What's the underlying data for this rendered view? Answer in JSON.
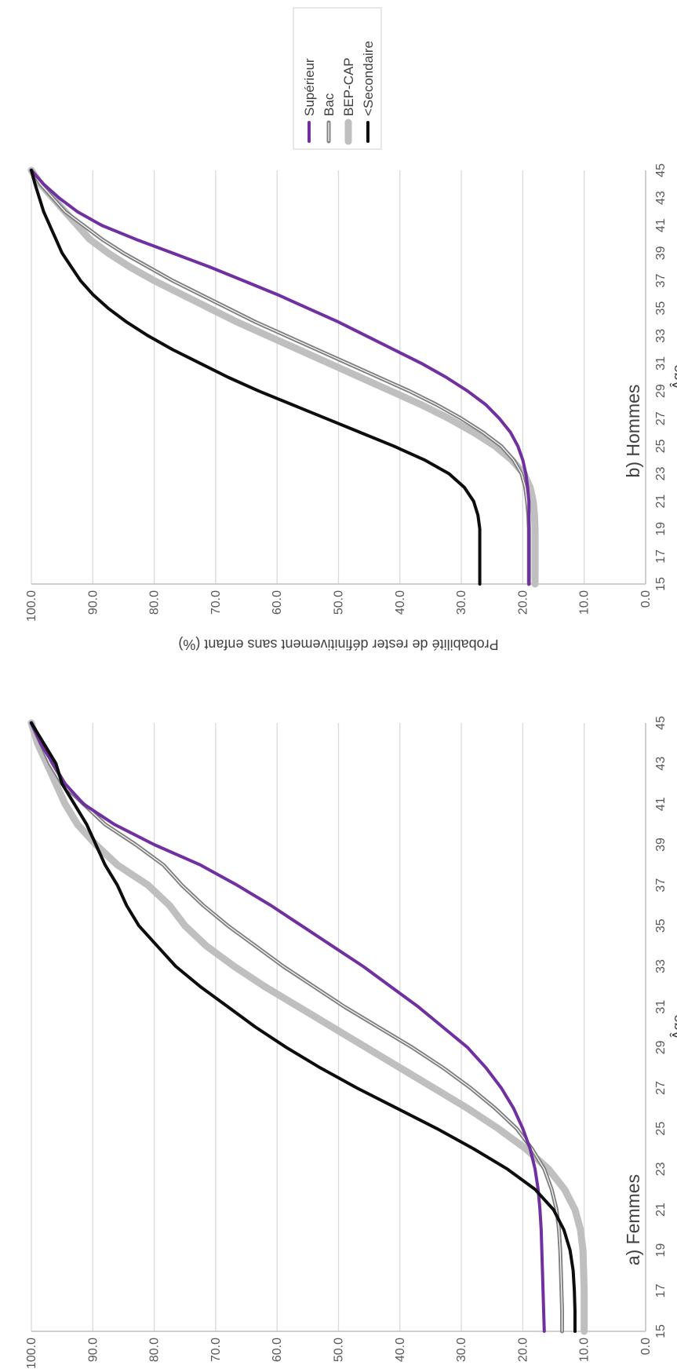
{
  "chart_data": [
    {
      "type": "line",
      "title": "a) Femmes",
      "xlabel": "Âge",
      "ylabel": "Probabilité de rester définitivement sans enfant (%)",
      "xlim": [
        15,
        45
      ],
      "ylim": [
        0,
        100
      ],
      "x_ticks": [
        "15",
        "17",
        "19",
        "21",
        "23",
        "25",
        "27",
        "29",
        "31",
        "33",
        "35",
        "37",
        "39",
        "41",
        "43",
        "45"
      ],
      "y_ticks": [
        "0.0",
        "10.0",
        "20.0",
        "30.0",
        "40.0",
        "50.0",
        "60.0",
        "70.0",
        "80.0",
        "90.0",
        "100.0"
      ],
      "grid": "horizontal",
      "x": [
        15,
        16,
        17,
        18,
        19,
        20,
        21,
        22,
        23,
        24,
        25,
        26,
        27,
        28,
        29,
        30,
        31,
        32,
        33,
        34,
        35,
        36,
        37,
        38,
        39,
        40,
        41,
        42,
        43,
        44,
        45
      ],
      "series": [
        {
          "name": "Supérieur",
          "color": "#7030a0",
          "width": 4,
          "values": [
            16.5,
            16.6,
            16.7,
            16.8,
            16.9,
            17.0,
            17.2,
            17.5,
            18.0,
            18.8,
            20.0,
            21.5,
            23.5,
            26.0,
            29.0,
            33.0,
            37.0,
            41.5,
            46.0,
            51.0,
            56.0,
            61.0,
            66.5,
            72.5,
            80.0,
            86.5,
            91.5,
            94.5,
            96.5,
            98.5,
            100.0
          ]
        },
        {
          "name": "Bac",
          "color": "#808080",
          "width": 5,
          "style": "double",
          "values": [
            13.6,
            13.6,
            13.7,
            13.8,
            13.9,
            14.1,
            14.5,
            15.3,
            16.5,
            18.5,
            21.0,
            24.5,
            28.5,
            33.0,
            38.0,
            43.5,
            49.0,
            54.0,
            59.0,
            63.5,
            68.0,
            72.0,
            75.5,
            78.5,
            83.0,
            88.0,
            91.5,
            95.0,
            97.0,
            98.5,
            100.0
          ]
        },
        {
          "name": "BEP-CAP",
          "color": "#bfbfbf",
          "width": 9,
          "values": [
            10.0,
            10.0,
            10.0,
            10.1,
            10.2,
            10.6,
            11.5,
            13.2,
            15.8,
            19.5,
            24.0,
            29.0,
            34.5,
            40.0,
            45.5,
            51.0,
            56.5,
            62.0,
            67.0,
            71.5,
            75.0,
            77.5,
            81.0,
            86.0,
            89.5,
            92.5,
            94.5,
            96.0,
            97.5,
            99.0,
            100.0
          ]
        },
        {
          "name": "<Secondaire",
          "color": "#0d0d0d",
          "width": 4,
          "values": [
            11.5,
            11.5,
            11.6,
            11.8,
            12.3,
            13.3,
            15.0,
            18.0,
            22.5,
            28.0,
            34.0,
            40.5,
            47.0,
            53.0,
            58.5,
            63.5,
            68.0,
            72.5,
            76.5,
            79.5,
            82.5,
            84.5,
            86.0,
            88.0,
            89.5,
            91.0,
            93.0,
            95.0,
            96.0,
            98.0,
            100.0
          ]
        }
      ]
    },
    {
      "type": "line",
      "title": "b) Hommes",
      "xlabel": "Âge",
      "ylabel": "Probabilité de rester définitivement sans enfant (%)",
      "xlim": [
        15,
        45
      ],
      "ylim": [
        0,
        100
      ],
      "x_ticks": [
        "15",
        "17",
        "19",
        "21",
        "23",
        "25",
        "27",
        "29",
        "31",
        "33",
        "35",
        "37",
        "39",
        "41",
        "43",
        "45"
      ],
      "y_ticks": [
        "0.0",
        "10.0",
        "20.0",
        "30.0",
        "40.0",
        "50.0",
        "60.0",
        "70.0",
        "80.0",
        "90.0",
        "100.0"
      ],
      "grid": "horizontal",
      "x": [
        15,
        16,
        17,
        18,
        19,
        20,
        21,
        22,
        23,
        24,
        25,
        26,
        27,
        28,
        29,
        30,
        31,
        32,
        33,
        34,
        35,
        36,
        37,
        38,
        39,
        40,
        41,
        42,
        43,
        44,
        45
      ],
      "series": [
        {
          "name": "Supérieur",
          "color": "#7030a0",
          "width": 4,
          "values": [
            19.0,
            19.0,
            19.0,
            19.0,
            19.0,
            19.0,
            19.0,
            19.2,
            19.5,
            20.0,
            20.8,
            22.0,
            23.8,
            26.0,
            29.0,
            32.5,
            36.5,
            41.0,
            45.5,
            50.0,
            55.0,
            60.0,
            65.5,
            71.0,
            77.0,
            83.0,
            88.5,
            92.5,
            95.5,
            98.0,
            100.0
          ]
        },
        {
          "name": "Bac",
          "color": "#808080",
          "width": 5,
          "style": "double",
          "values": [
            19.0,
            19.0,
            19.0,
            19.0,
            19.0,
            19.1,
            19.3,
            19.6,
            20.2,
            21.5,
            23.5,
            26.5,
            30.0,
            34.0,
            38.5,
            43.5,
            48.5,
            53.5,
            58.5,
            63.5,
            68.0,
            72.5,
            77.0,
            81.0,
            85.0,
            88.5,
            91.5,
            94.5,
            96.5,
            98.5,
            100.0
          ]
        },
        {
          "name": "BEP-CAP",
          "color": "#bfbfbf",
          "width": 9,
          "values": [
            18.0,
            18.0,
            18.0,
            18.0,
            18.0,
            18.1,
            18.3,
            18.8,
            19.8,
            21.8,
            24.5,
            28.0,
            32.0,
            36.5,
            41.5,
            46.5,
            51.5,
            56.5,
            61.5,
            66.5,
            71.0,
            75.5,
            80.0,
            84.0,
            87.5,
            90.5,
            92.5,
            94.5,
            96.5,
            98.5,
            100.0
          ]
        },
        {
          "name": "<Secondaire",
          "color": "#0d0d0d",
          "width": 4,
          "values": [
            27.0,
            27.0,
            27.0,
            27.0,
            27.0,
            27.3,
            28.0,
            29.5,
            32.0,
            36.0,
            41.0,
            46.5,
            52.0,
            57.5,
            63.0,
            68.0,
            72.5,
            77.0,
            81.0,
            84.5,
            87.5,
            90.0,
            92.0,
            93.5,
            95.0,
            96.0,
            97.0,
            98.0,
            98.7,
            99.4,
            100.0
          ]
        }
      ]
    }
  ]
}
